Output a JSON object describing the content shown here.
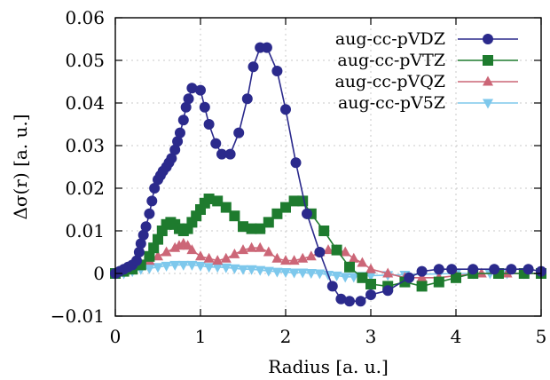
{
  "chart_data": {
    "type": "line",
    "xlabel": "Radius [a. u.]",
    "ylabel": "Δσ(r) [a. u.]",
    "xlim": [
      0,
      5
    ],
    "ylim": [
      -0.01,
      0.06
    ],
    "xticks": [
      0,
      1,
      2,
      3,
      4,
      5
    ],
    "xtick_labels": [
      "0",
      "1",
      "2",
      "3",
      "4",
      "5"
    ],
    "yticks": [
      -0.01,
      0,
      0.01,
      0.02,
      0.03,
      0.04,
      0.05,
      0.06
    ],
    "ytick_labels": [
      "−0.01",
      "0",
      "0.01",
      "0.02",
      "0.03",
      "0.04",
      "0.05",
      "0.06"
    ],
    "grid": true,
    "legend_position": "top-right",
    "series": [
      {
        "name": "aug-cc-pVDZ",
        "color": "#2b2a8c",
        "marker": "circle",
        "x": [
          0,
          0.05,
          0.1,
          0.15,
          0.2,
          0.25,
          0.28,
          0.3,
          0.33,
          0.36,
          0.4,
          0.43,
          0.46,
          0.5,
          0.53,
          0.56,
          0.6,
          0.63,
          0.66,
          0.7,
          0.73,
          0.76,
          0.8,
          0.83,
          0.86,
          0.9,
          1.0,
          1.05,
          1.1,
          1.18,
          1.25,
          1.35,
          1.45,
          1.55,
          1.62,
          1.7,
          1.78,
          1.9,
          2.0,
          2.12,
          2.25,
          2.4,
          2.55,
          2.65,
          2.75,
          2.88,
          3.0,
          3.2,
          3.45,
          3.6,
          3.8,
          3.95,
          4.2,
          4.45,
          4.65,
          4.85,
          5.0
        ],
        "y": [
          0.0,
          0.0005,
          0.001,
          0.0015,
          0.002,
          0.003,
          0.005,
          0.007,
          0.009,
          0.011,
          0.014,
          0.017,
          0.02,
          0.022,
          0.023,
          0.024,
          0.025,
          0.026,
          0.027,
          0.029,
          0.031,
          0.033,
          0.036,
          0.039,
          0.041,
          0.0435,
          0.043,
          0.039,
          0.035,
          0.0305,
          0.028,
          0.028,
          0.033,
          0.041,
          0.0485,
          0.053,
          0.053,
          0.0475,
          0.0385,
          0.026,
          0.014,
          0.005,
          -0.003,
          -0.006,
          -0.0065,
          -0.0065,
          -0.005,
          -0.004,
          -0.001,
          0.0005,
          0.001,
          0.001,
          0.001,
          0.001,
          0.001,
          0.001,
          0.0005
        ]
      },
      {
        "name": "aug-cc-pVTZ",
        "color": "#1e7b2e",
        "marker": "square",
        "x": [
          0,
          0.1,
          0.2,
          0.3,
          0.4,
          0.45,
          0.5,
          0.55,
          0.6,
          0.65,
          0.7,
          0.75,
          0.8,
          0.85,
          0.9,
          0.95,
          1.0,
          1.05,
          1.1,
          1.2,
          1.3,
          1.4,
          1.5,
          1.6,
          1.7,
          1.8,
          1.9,
          2.0,
          2.1,
          2.2,
          2.3,
          2.45,
          2.6,
          2.75,
          2.9,
          3.0,
          3.2,
          3.4,
          3.6,
          3.8,
          4.0,
          4.2,
          4.5,
          4.8,
          5.0
        ],
        "y": [
          0.0,
          0.0005,
          0.001,
          0.002,
          0.004,
          0.006,
          0.008,
          0.01,
          0.0115,
          0.012,
          0.0115,
          0.0105,
          0.01,
          0.0105,
          0.012,
          0.0135,
          0.015,
          0.0165,
          0.0175,
          0.017,
          0.0155,
          0.0135,
          0.011,
          0.0105,
          0.0105,
          0.012,
          0.014,
          0.0155,
          0.017,
          0.017,
          0.014,
          0.01,
          0.0055,
          0.0015,
          -0.001,
          -0.0025,
          -0.003,
          -0.002,
          -0.003,
          -0.002,
          -0.001,
          0.0,
          0.0,
          0.0,
          0.0
        ]
      },
      {
        "name": "aug-cc-pVQZ",
        "color": "#cc6677",
        "marker": "triangle-up",
        "x": [
          0,
          0.1,
          0.2,
          0.3,
          0.4,
          0.5,
          0.6,
          0.7,
          0.75,
          0.8,
          0.85,
          0.9,
          1.0,
          1.1,
          1.2,
          1.3,
          1.4,
          1.5,
          1.6,
          1.7,
          1.8,
          1.9,
          2.0,
          2.1,
          2.2,
          2.3,
          2.4,
          2.5,
          2.6,
          2.7,
          2.8,
          2.9,
          3.0,
          3.2,
          3.4,
          3.6,
          3.8,
          4.0,
          4.3,
          4.6,
          5.0
        ],
        "y": [
          0.0,
          0.0005,
          0.001,
          0.002,
          0.003,
          0.004,
          0.005,
          0.006,
          0.0065,
          0.007,
          0.0065,
          0.0055,
          0.004,
          0.0035,
          0.003,
          0.0035,
          0.0045,
          0.0055,
          0.006,
          0.006,
          0.005,
          0.0035,
          0.003,
          0.003,
          0.0035,
          0.004,
          0.005,
          0.0055,
          0.0055,
          0.005,
          0.0035,
          0.0025,
          0.001,
          0.0,
          -0.001,
          -0.001,
          -0.001,
          -0.0005,
          0.0,
          0.0,
          0.0
        ]
      },
      {
        "name": "aug-cc-pV5Z",
        "color": "#7ec8ec",
        "marker": "triangle-down",
        "x": [
          0,
          0.1,
          0.2,
          0.3,
          0.4,
          0.5,
          0.6,
          0.7,
          0.8,
          0.9,
          1.0,
          1.1,
          1.2,
          1.3,
          1.4,
          1.5,
          1.6,
          1.7,
          1.8,
          1.9,
          2.0,
          2.1,
          2.2,
          2.3,
          2.4,
          2.5,
          2.6,
          2.7,
          2.8,
          2.9,
          3.0,
          3.2,
          3.4,
          3.6,
          3.8,
          4.0,
          4.2,
          4.4,
          4.6,
          4.8,
          5.0
        ],
        "y": [
          0.0,
          0.0,
          0.0005,
          0.001,
          0.0012,
          0.0015,
          0.0018,
          0.002,
          0.002,
          0.002,
          0.0018,
          0.0015,
          0.0015,
          0.0014,
          0.0012,
          0.001,
          0.001,
          0.0008,
          0.0006,
          0.0004,
          0.0003,
          0.0002,
          0.0002,
          0.0001,
          0.0,
          -0.0003,
          -0.0005,
          -0.0008,
          -0.0008,
          -0.0006,
          -0.0005,
          -0.0004,
          -0.0003,
          -0.0002,
          -0.0001,
          0.0,
          0.0,
          0.0,
          0.0,
          0.0,
          0.0
        ]
      }
    ]
  }
}
